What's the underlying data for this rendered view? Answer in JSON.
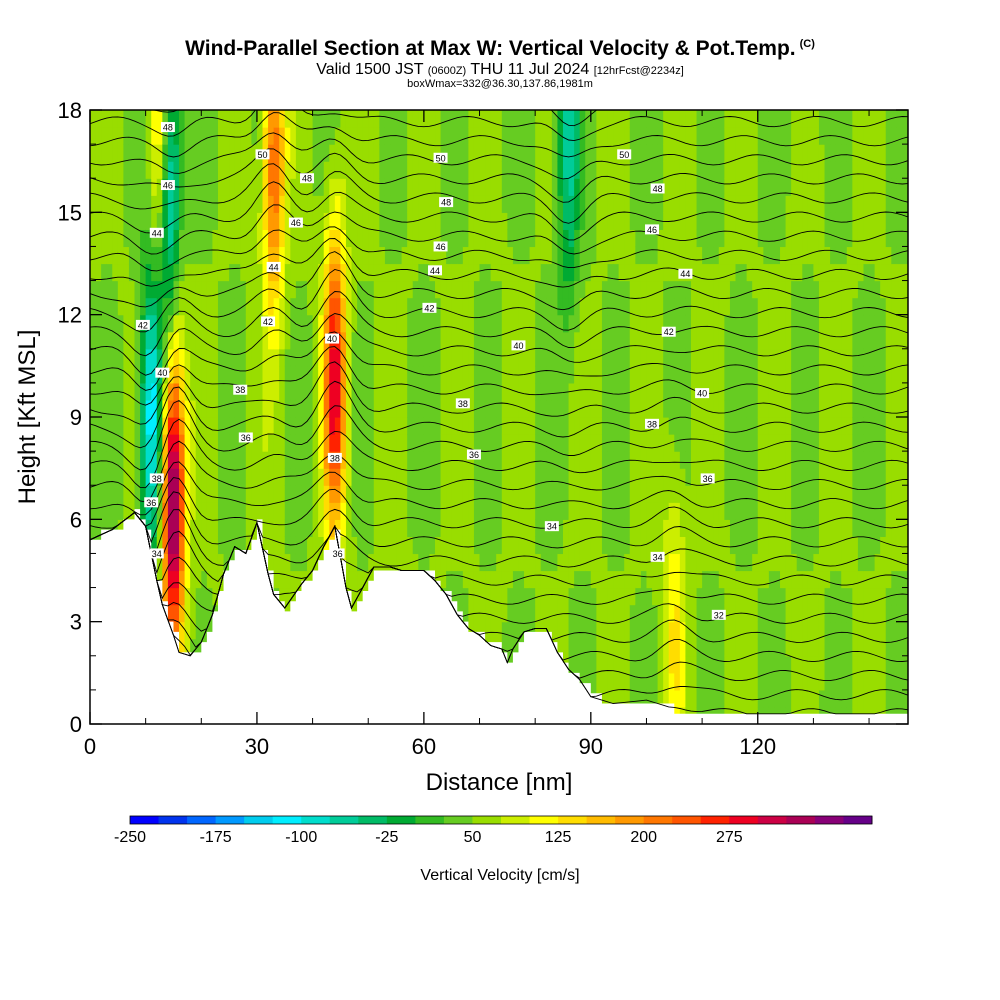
{
  "chart_data": {
    "type": "heatmap",
    "title": "Wind-Parallel Section at Max W: Vertical Velocity & Pot.Temp.",
    "title_mark": "(C)",
    "subtitle_valid": "Valid 1500 JST",
    "subtitle_utc": "(0600Z)",
    "subtitle_date": "THU 11 Jul 2024",
    "subtitle_fcst": "[12hrFcst@2234z]",
    "subtitle_box": "boxWmax=332@36.30,137.86,1981m",
    "xlabel": "Distance [nm]",
    "ylabel": "Height [Kft MSL]",
    "xlim": [
      0,
      147
    ],
    "ylim": [
      0,
      18
    ],
    "xticks": [
      "0",
      "30",
      "60",
      "90",
      "120"
    ],
    "yticks": [
      "0",
      "3",
      "6",
      "9",
      "12",
      "15",
      "18"
    ],
    "colorbar": {
      "label": "Vertical Velocity [cm/s]",
      "tick_labels": [
        "-250",
        "-175",
        "-100",
        "-25",
        "50",
        "125",
        "200",
        "275"
      ],
      "colors": [
        "#0000ff",
        "#0033ee",
        "#0066ff",
        "#0099ff",
        "#00ccee",
        "#00eeff",
        "#00ddcc",
        "#00cc99",
        "#00bb66",
        "#00aa33",
        "#33bb22",
        "#66cc22",
        "#99dd00",
        "#ccee00",
        "#ffff00",
        "#ffdd00",
        "#ffbb00",
        "#ff9900",
        "#ff7700",
        "#ff5500",
        "#ff2200",
        "#ee0022",
        "#cc0044",
        "#aa0055",
        "#880077",
        "#660088"
      ]
    },
    "terrain_kft": [
      [
        0,
        5.4
      ],
      [
        4,
        5.7
      ],
      [
        8,
        6.2
      ],
      [
        10,
        5.8
      ],
      [
        12,
        4.2
      ],
      [
        13,
        3.5
      ],
      [
        15,
        2.6
      ],
      [
        16,
        2.1
      ],
      [
        18,
        2.0
      ],
      [
        20,
        2.4
      ],
      [
        22,
        3.2
      ],
      [
        24,
        4.4
      ],
      [
        26,
        5.2
      ],
      [
        28,
        5.0
      ],
      [
        30,
        5.9
      ],
      [
        32,
        4.4
      ],
      [
        33,
        3.8
      ],
      [
        35,
        3.4
      ],
      [
        38,
        4.1
      ],
      [
        40,
        4.5
      ],
      [
        42,
        5.2
      ],
      [
        44,
        5.8
      ],
      [
        46,
        4.0
      ],
      [
        47,
        3.4
      ],
      [
        49,
        4.0
      ],
      [
        51,
        4.6
      ],
      [
        54,
        4.6
      ],
      [
        56,
        4.5
      ],
      [
        58,
        4.5
      ],
      [
        60,
        4.5
      ],
      [
        62,
        4.2
      ],
      [
        64,
        3.8
      ],
      [
        66,
        3.2
      ],
      [
        68,
        2.8
      ],
      [
        70,
        2.6
      ],
      [
        72,
        2.3
      ],
      [
        74,
        2.2
      ],
      [
        75,
        1.8
      ],
      [
        76,
        2.2
      ],
      [
        78,
        2.7
      ],
      [
        80,
        2.8
      ],
      [
        82,
        2.8
      ],
      [
        84,
        2.1
      ],
      [
        86,
        1.6
      ],
      [
        88,
        1.3
      ],
      [
        90,
        0.8
      ],
      [
        92,
        0.7
      ],
      [
        94,
        0.6
      ],
      [
        100,
        0.7
      ],
      [
        104,
        0.5
      ],
      [
        106,
        0.3
      ],
      [
        147,
        0.3
      ]
    ],
    "updraft_cores": [
      {
        "x": 15,
        "y": 6.5,
        "w_cms": 280
      },
      {
        "x": 33,
        "y": 16.5,
        "w_cms": 150
      },
      {
        "x": 44,
        "y": 10.0,
        "w_cms": 200
      },
      {
        "x": 13,
        "y": 17.0,
        "w_cms": 150
      },
      {
        "x": 105,
        "y": 3.0,
        "w_cms": 60
      }
    ],
    "downdraft_cores": [
      {
        "x": 11,
        "y": 9.0,
        "w_cms": -150
      },
      {
        "x": 14,
        "y": 16.0,
        "w_cms": -200
      },
      {
        "x": 86,
        "y": 17.0,
        "w_cms": -100
      }
    ],
    "pot_temp_contour_labels": [
      {
        "x": 14,
        "y": 17.5,
        "text": "48"
      },
      {
        "x": 14,
        "y": 15.8,
        "text": "46"
      },
      {
        "x": 12,
        "y": 14.4,
        "text": "44"
      },
      {
        "x": 9.5,
        "y": 11.7,
        "text": "42"
      },
      {
        "x": 13,
        "y": 10.3,
        "text": "40"
      },
      {
        "x": 12,
        "y": 7.2,
        "text": "38"
      },
      {
        "x": 11,
        "y": 6.5,
        "text": "36"
      },
      {
        "x": 12,
        "y": 5.0,
        "text": "34"
      },
      {
        "x": 31,
        "y": 16.7,
        "text": "50"
      },
      {
        "x": 39,
        "y": 16.0,
        "text": "48"
      },
      {
        "x": 37,
        "y": 14.7,
        "text": "46"
      },
      {
        "x": 33,
        "y": 13.4,
        "text": "44"
      },
      {
        "x": 32,
        "y": 11.8,
        "text": "42"
      },
      {
        "x": 27,
        "y": 9.8,
        "text": "38"
      },
      {
        "x": 28,
        "y": 8.4,
        "text": "36"
      },
      {
        "x": 43.5,
        "y": 11.3,
        "text": "40"
      },
      {
        "x": 44,
        "y": 7.8,
        "text": "38"
      },
      {
        "x": 44.5,
        "y": 5.0,
        "text": "36"
      },
      {
        "x": 63,
        "y": 16.6,
        "text": "50"
      },
      {
        "x": 64,
        "y": 15.3,
        "text": "48"
      },
      {
        "x": 63,
        "y": 14.0,
        "text": "46"
      },
      {
        "x": 62,
        "y": 13.3,
        "text": "44"
      },
      {
        "x": 61,
        "y": 12.2,
        "text": "42"
      },
      {
        "x": 77,
        "y": 11.1,
        "text": "40"
      },
      {
        "x": 67,
        "y": 9.4,
        "text": "38"
      },
      {
        "x": 69,
        "y": 7.9,
        "text": "36"
      },
      {
        "x": 83,
        "y": 5.8,
        "text": "34"
      },
      {
        "x": 96,
        "y": 16.7,
        "text": "50"
      },
      {
        "x": 102,
        "y": 15.7,
        "text": "48"
      },
      {
        "x": 101,
        "y": 14.5,
        "text": "46"
      },
      {
        "x": 107,
        "y": 13.2,
        "text": "44"
      },
      {
        "x": 104,
        "y": 11.5,
        "text": "42"
      },
      {
        "x": 110,
        "y": 9.7,
        "text": "40"
      },
      {
        "x": 101,
        "y": 8.8,
        "text": "38"
      },
      {
        "x": 111,
        "y": 7.2,
        "text": "36"
      },
      {
        "x": 102,
        "y": 4.9,
        "text": "34"
      },
      {
        "x": 113,
        "y": 3.2,
        "text": "32"
      }
    ]
  }
}
